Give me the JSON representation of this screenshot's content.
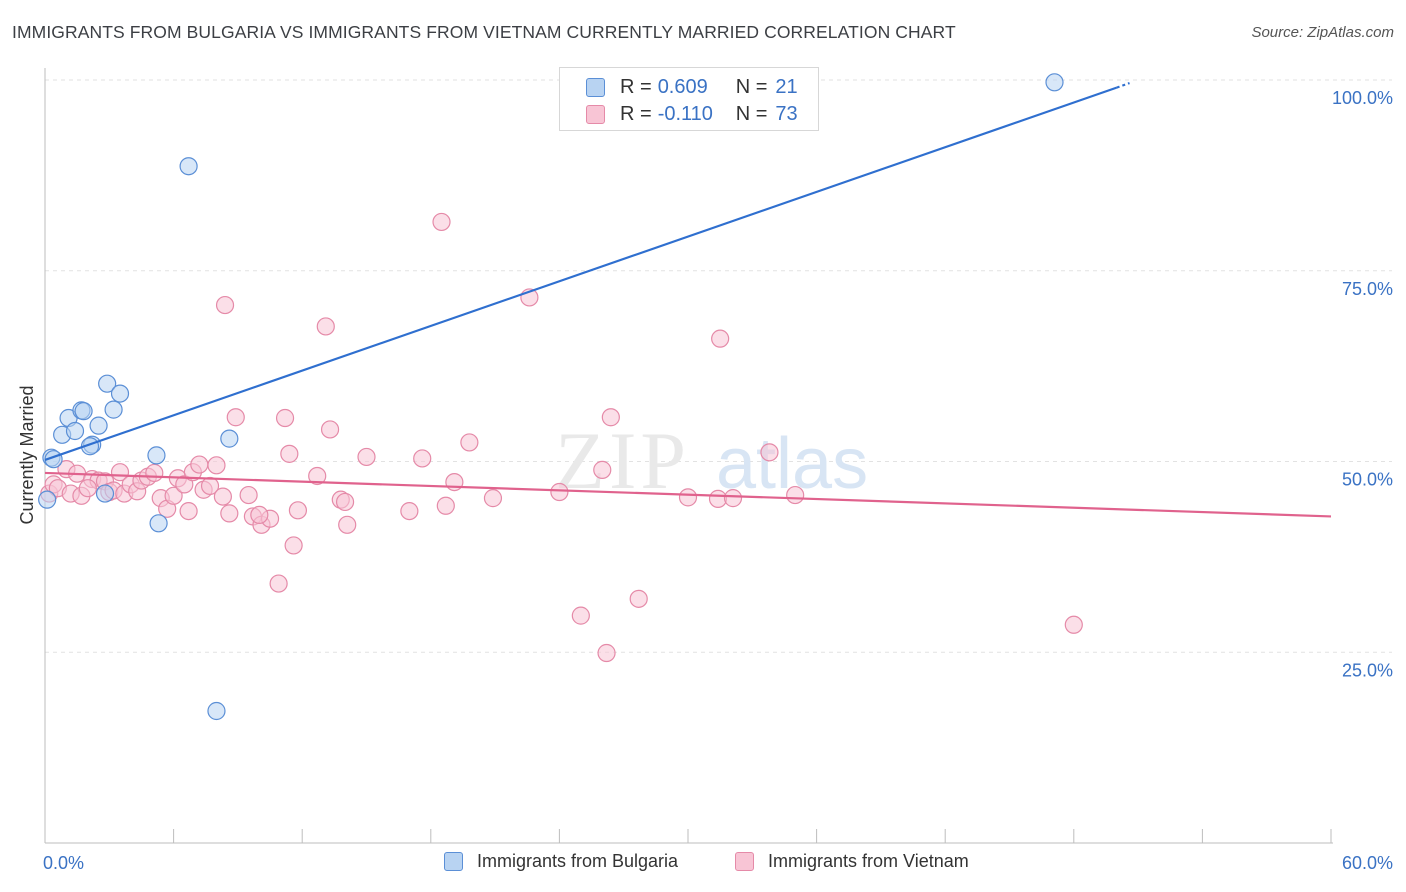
{
  "header": {
    "title": "IMMIGRANTS FROM BULGARIA VS IMMIGRANTS FROM VIETNAM CURRENTLY MARRIED CORRELATION CHART",
    "source": "Source: ZipAtlas.com"
  },
  "watermark": {
    "zip": "ZIP",
    "atlas": "atlas"
  },
  "legend_top": {
    "rows": [
      {
        "r_label": "R =",
        "r_value": "0.609",
        "n_label": "N =",
        "n_value": "21"
      },
      {
        "r_label": "R =",
        "r_value": "-0.110",
        "n_label": "N =",
        "n_value": "73"
      }
    ]
  },
  "legend_bottom": {
    "items": [
      {
        "label": "Immigrants from Bulgaria"
      },
      {
        "label": "Immigrants from Vietnam"
      }
    ]
  },
  "colors": {
    "bulgaria_fill": "#b8d3f2",
    "bulgaria_stroke": "#5b8fd6",
    "bulgaria_line": "#2f6fcf",
    "vietnam_fill": "#f8c5d5",
    "vietnam_stroke": "#e58aa8",
    "vietnam_line": "#e0628d",
    "axis_label": "#3a72c4",
    "grid": "#e2e2e2"
  },
  "chart_data": {
    "type": "scatter",
    "title": "IMMIGRANTS FROM BULGARIA VS IMMIGRANTS FROM VIETNAM CURRENTLY MARRIED CORRELATION CHART",
    "xlabel": "",
    "ylabel": "Currently Married",
    "xlim": [
      0,
      60
    ],
    "ylim": [
      0,
      100
    ],
    "x_tick_labels": [
      "0.0%",
      "60.0%"
    ],
    "y_ticks": [
      25,
      50,
      75,
      100
    ],
    "y_tick_labels": [
      "25.0%",
      "50.0%",
      "75.0%",
      "100.0%"
    ],
    "grid": true,
    "series": [
      {
        "name": "Immigrants from Bulgaria",
        "r": 0.609,
        "n": 21,
        "points": [
          [
            0.1,
            45.0
          ],
          [
            0.3,
            50.5
          ],
          [
            0.8,
            53.5
          ],
          [
            1.1,
            55.7
          ],
          [
            1.4,
            54.0
          ],
          [
            1.7,
            56.7
          ],
          [
            1.8,
            56.6
          ],
          [
            2.2,
            52.2
          ],
          [
            2.5,
            54.7
          ],
          [
            2.8,
            45.8
          ],
          [
            2.9,
            60.2
          ],
          [
            3.2,
            56.8
          ],
          [
            3.5,
            58.9
          ],
          [
            5.2,
            50.8
          ],
          [
            5.3,
            41.9
          ],
          [
            6.7,
            88.7
          ],
          [
            8.0,
            17.3
          ],
          [
            8.6,
            53.0
          ],
          [
            47.1,
            99.7
          ],
          [
            0.4,
            50.3
          ],
          [
            2.1,
            52.0
          ]
        ],
        "trend": {
          "x_start": 0,
          "y_start": 50.2,
          "x_end": 50,
          "y_end": 99.0
        }
      },
      {
        "name": "Immigrants from Vietnam",
        "r": -0.11,
        "n": 73,
        "points": [
          [
            0.2,
            45.8
          ],
          [
            0.4,
            47.0
          ],
          [
            0.6,
            46.5
          ],
          [
            1.0,
            49.0
          ],
          [
            1.2,
            45.8
          ],
          [
            1.5,
            48.4
          ],
          [
            1.7,
            45.5
          ],
          [
            2.2,
            47.7
          ],
          [
            2.5,
            47.5
          ],
          [
            2.8,
            47.4
          ],
          [
            3.0,
            46.0
          ],
          [
            3.2,
            46.2
          ],
          [
            3.5,
            48.6
          ],
          [
            3.7,
            45.8
          ],
          [
            4.0,
            47.0
          ],
          [
            4.3,
            46.1
          ],
          [
            4.5,
            47.5
          ],
          [
            4.8,
            48.0
          ],
          [
            5.1,
            48.5
          ],
          [
            5.4,
            45.2
          ],
          [
            5.7,
            43.8
          ],
          [
            6.0,
            45.5
          ],
          [
            6.2,
            47.8
          ],
          [
            6.5,
            47.0
          ],
          [
            6.7,
            43.5
          ],
          [
            6.9,
            48.6
          ],
          [
            7.2,
            49.6
          ],
          [
            7.4,
            46.3
          ],
          [
            7.7,
            46.8
          ],
          [
            8.0,
            49.5
          ],
          [
            8.3,
            45.4
          ],
          [
            8.6,
            43.2
          ],
          [
            8.9,
            55.8
          ],
          [
            9.5,
            45.6
          ],
          [
            9.7,
            42.8
          ],
          [
            10.1,
            41.7
          ],
          [
            10.5,
            42.5
          ],
          [
            10.9,
            34.0
          ],
          [
            11.2,
            55.7
          ],
          [
            11.4,
            51.0
          ],
          [
            11.6,
            39.0
          ],
          [
            11.8,
            43.6
          ],
          [
            12.7,
            48.1
          ],
          [
            13.1,
            67.7
          ],
          [
            13.3,
            54.2
          ],
          [
            13.8,
            45.0
          ],
          [
            14.0,
            44.7
          ],
          [
            14.1,
            41.7
          ],
          [
            15.0,
            50.6
          ],
          [
            17.0,
            43.5
          ],
          [
            17.6,
            50.4
          ],
          [
            18.7,
            44.2
          ],
          [
            19.1,
            47.3
          ],
          [
            19.8,
            52.5
          ],
          [
            20.9,
            45.2
          ],
          [
            22.6,
            71.5
          ],
          [
            24.0,
            46.0
          ],
          [
            25.0,
            29.8
          ],
          [
            26.0,
            48.9
          ],
          [
            26.2,
            24.9
          ],
          [
            26.4,
            55.8
          ],
          [
            27.7,
            32.0
          ],
          [
            30.0,
            45.3
          ],
          [
            31.4,
            45.1
          ],
          [
            31.5,
            66.1
          ],
          [
            32.1,
            45.2
          ],
          [
            33.8,
            51.2
          ],
          [
            35.0,
            45.6
          ],
          [
            48.0,
            28.6
          ],
          [
            8.4,
            70.5
          ],
          [
            18.5,
            81.4
          ],
          [
            10.0,
            43.0
          ],
          [
            2.0,
            46.5
          ]
        ],
        "trend": {
          "x_start": 0,
          "y_start": 48.5,
          "x_end": 60,
          "y_end": 42.8
        }
      }
    ]
  }
}
